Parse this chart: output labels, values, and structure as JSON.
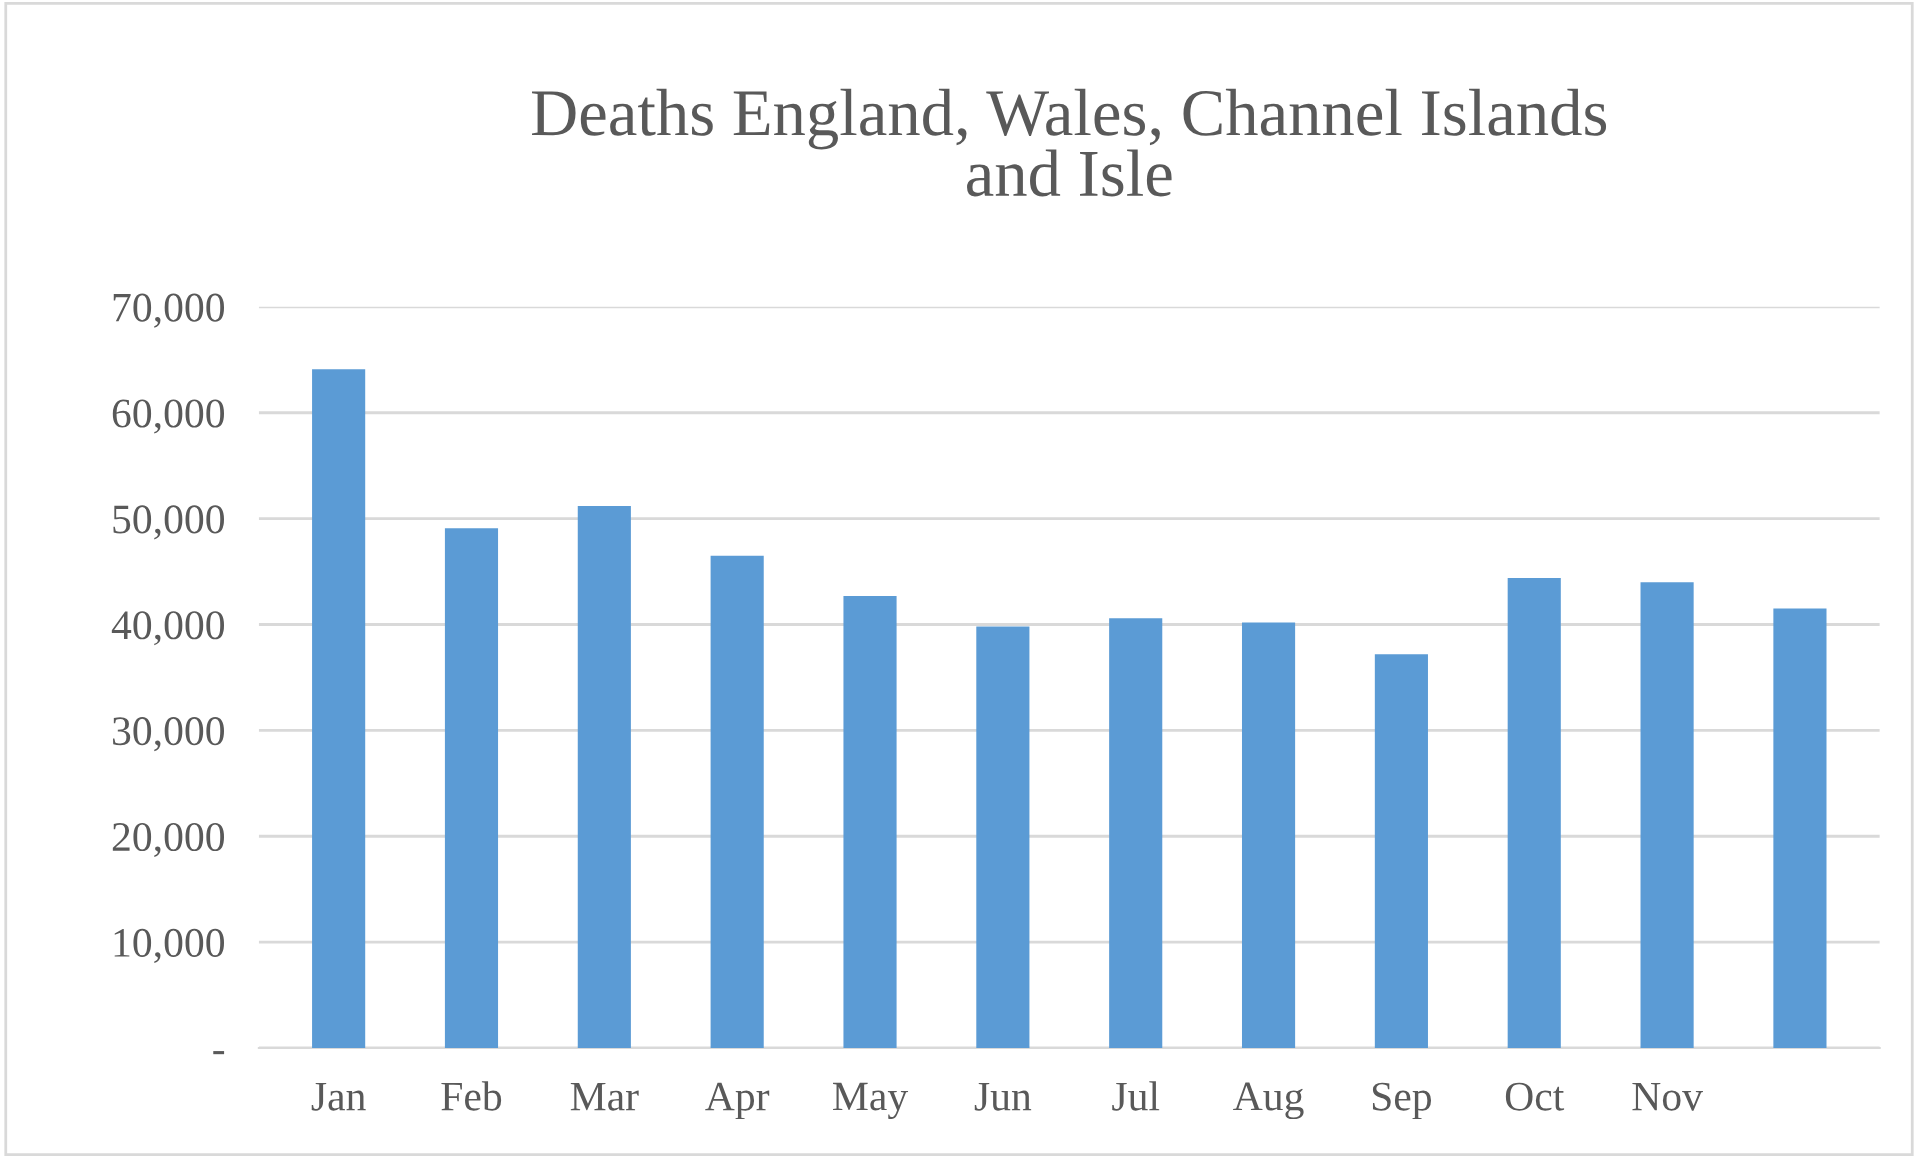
{
  "chart_data": {
    "type": "bar",
    "title": "Deaths England, Wales, Channel Islands\nand Isle",
    "categories": [
      "Jan",
      "Feb",
      "Mar",
      "Apr",
      "May",
      "Jun",
      "Jul",
      "Aug",
      "Sep",
      "Oct",
      "Nov",
      null
    ],
    "values": [
      64100,
      49100,
      51200,
      46500,
      42700,
      39800,
      40600,
      40200,
      37200,
      44400,
      44000,
      41500
    ],
    "color": "#5b9bd5",
    "ylim": [
      0,
      70000
    ],
    "yticks": [
      {
        "value": 0,
        "label": "-"
      },
      {
        "value": 10000,
        "label": "10,000"
      },
      {
        "value": 20000,
        "label": "20,000"
      },
      {
        "value": 30000,
        "label": "30,000"
      },
      {
        "value": 40000,
        "label": "40,000"
      },
      {
        "value": 50000,
        "label": "50,000"
      },
      {
        "value": 60000,
        "label": "60,000"
      },
      {
        "value": 70000,
        "label": "70,000"
      }
    ],
    "grid": "y"
  }
}
